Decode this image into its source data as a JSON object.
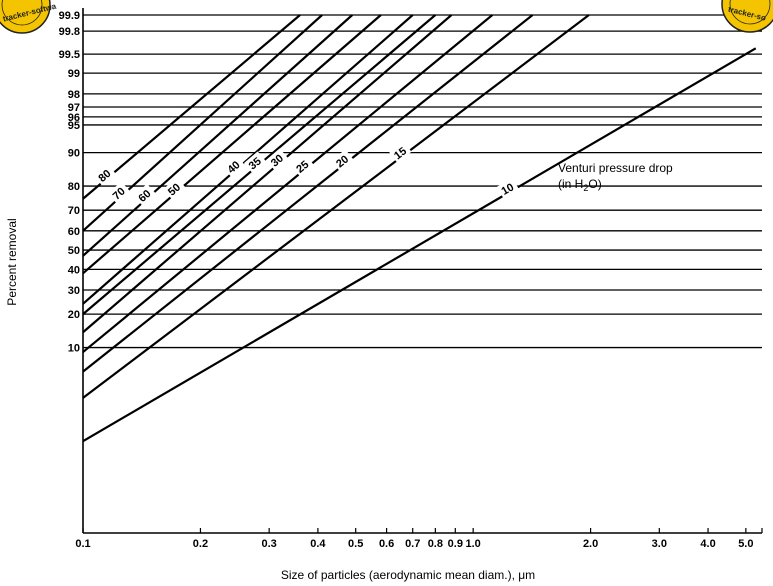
{
  "chart_data": {
    "type": "line",
    "title": "",
    "xlabel": "Size of particles (aerodynamic mean diam.), μm",
    "ylabel": "Percent removal",
    "x_scale": "log",
    "y_scale": "probability",
    "xlim": [
      0.1,
      5.5
    ],
    "ylim": [
      0.01,
      99.9
    ],
    "x_ticks": [
      "0.1",
      "0.2",
      "0.3",
      "0.4",
      "0.5",
      "0.6",
      "0.7",
      "0.8",
      "0.9",
      "1.0",
      "2.0",
      "3.0",
      "4.0",
      "5.0"
    ],
    "y_ticks": [
      "99.9",
      "99.8",
      "99.5",
      "99",
      "98",
      "97",
      "96",
      "95",
      "90",
      "80",
      "70",
      "60",
      "50",
      "40",
      "30",
      "20",
      "10"
    ],
    "legend_title": "Venturi pressure drop",
    "legend_unit": "(in H",
    "legend_unit_sub": "2",
    "legend_unit_end": "O)",
    "series": [
      {
        "name": "80",
        "points": [
          [
            0.1,
            75
          ],
          [
            0.36,
            99.9
          ]
        ]
      },
      {
        "name": "70",
        "points": [
          [
            0.1,
            60
          ],
          [
            0.41,
            99.9
          ]
        ]
      },
      {
        "name": "60",
        "points": [
          [
            0.1,
            47
          ],
          [
            0.49,
            99.9
          ]
        ]
      },
      {
        "name": "50",
        "points": [
          [
            0.1,
            38
          ],
          [
            0.58,
            99.9
          ]
        ]
      },
      {
        "name": "40",
        "points": [
          [
            0.1,
            24
          ],
          [
            0.7,
            99.9
          ]
        ]
      },
      {
        "name": "35",
        "points": [
          [
            0.1,
            20
          ],
          [
            0.8,
            99.9
          ]
        ]
      },
      {
        "name": "30",
        "points": [
          [
            0.1,
            14
          ],
          [
            0.88,
            99.9
          ]
        ]
      },
      {
        "name": "25",
        "points": [
          [
            0.1,
            9
          ],
          [
            1.12,
            99.9
          ]
        ]
      },
      {
        "name": "20",
        "points": [
          [
            0.1,
            5.5
          ],
          [
            1.42,
            99.9
          ]
        ]
      },
      {
        "name": "15",
        "points": [
          [
            0.1,
            2.6
          ],
          [
            1.98,
            99.9
          ]
        ]
      },
      {
        "name": "10",
        "points": [
          [
            0.1,
            0.6
          ],
          [
            5.3,
            99.6
          ]
        ]
      }
    ]
  },
  "watermark": {
    "left": "tracker-softwa",
    "right": "tracker-so"
  }
}
